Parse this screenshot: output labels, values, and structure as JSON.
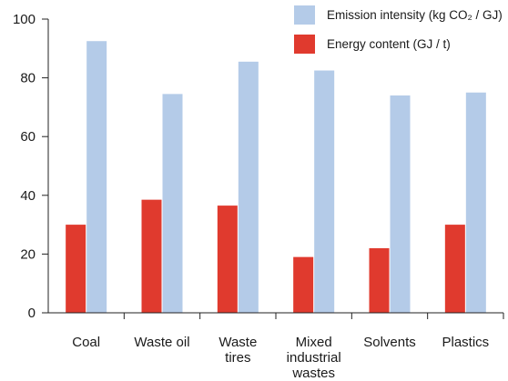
{
  "chart_data": {
    "type": "bar",
    "title": "",
    "xlabel": "",
    "ylabel": "",
    "ylim": [
      0,
      100
    ],
    "yticks": [
      0,
      20,
      40,
      60,
      80,
      100
    ],
    "grid": false,
    "legend_position": "top-right",
    "categories": [
      [
        "Coal"
      ],
      [
        "Waste oil"
      ],
      [
        "Waste",
        "tires"
      ],
      [
        "Mixed",
        "industrial",
        "wastes"
      ],
      [
        "Solvents"
      ],
      [
        "Plastics"
      ]
    ],
    "series": [
      {
        "name": "Energy content (GJ / t)",
        "color": "#e03a2e",
        "values": [
          30,
          38.5,
          36.5,
          19,
          22,
          30
        ]
      },
      {
        "name": "Emission intensity (kg CO₂ / GJ)",
        "color": "#b4cbe8",
        "values": [
          92.5,
          74.5,
          85.5,
          82.5,
          74,
          75
        ]
      }
    ],
    "legend_order": [
      1,
      0
    ]
  }
}
